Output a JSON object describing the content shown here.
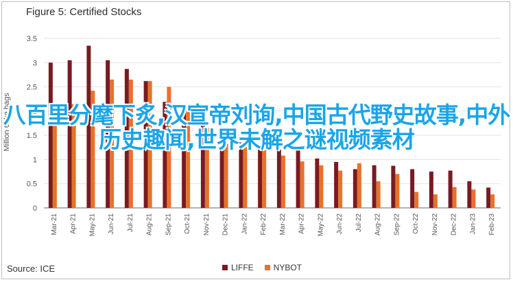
{
  "title": "Figure 5: Certified Stocks",
  "source": "Source: ICE",
  "overlay_text": "八百里分麾下炙,汉宣帝刘询,中国古代野史故事,中外历史趣闻,世界未解之谜视频素材",
  "colors": {
    "LIFFE": "#7a1a22",
    "NYBOT": "#e8722a"
  },
  "chart_data": {
    "type": "bar",
    "title": "Figure 5: Certified Stocks",
    "ylabel": "Million 60kg bags",
    "ylim": [
      0,
      3.5
    ],
    "yticks": [
      "0",
      "0.5",
      "1",
      "1.5",
      "2",
      "2.5",
      "3",
      "3.5"
    ],
    "grid": true,
    "legend": "bottom",
    "categories": [
      "Mar-21",
      "Apr-21",
      "May-21",
      "Jun-21",
      "Jul-21",
      "Aug-21",
      "Sep-21",
      "Oct-21",
      "Nov-21",
      "Dec-21",
      "Jan-22",
      "Feb-22",
      "Mar-22",
      "Apr-22",
      "May-22",
      "Jun-22",
      "Jul-22",
      "Aug-22",
      "Sep-22",
      "Oct-22",
      "Nov-22",
      "Dec-22",
      "Jan-23",
      "Feb-23"
    ],
    "series": [
      {
        "name": "LIFFE",
        "values": [
          3.0,
          3.05,
          3.35,
          3.05,
          2.87,
          2.62,
          2.19,
          1.97,
          1.72,
          1.32,
          1.35,
          1.2,
          1.2,
          1.2,
          1.02,
          0.95,
          0.8,
          0.88,
          0.87,
          0.8,
          0.75,
          0.77,
          0.55,
          0.42
        ]
      },
      {
        "name": "NYBOT",
        "values": [
          1.96,
          2.14,
          2.42,
          2.65,
          2.65,
          2.62,
          2.5,
          2.01,
          1.65,
          1.32,
          1.35,
          1.2,
          1.08,
          0.96,
          0.88,
          0.77,
          0.92,
          0.55,
          0.7,
          0.33,
          0.28,
          0.43,
          0.38,
          0.28
        ]
      }
    ]
  }
}
